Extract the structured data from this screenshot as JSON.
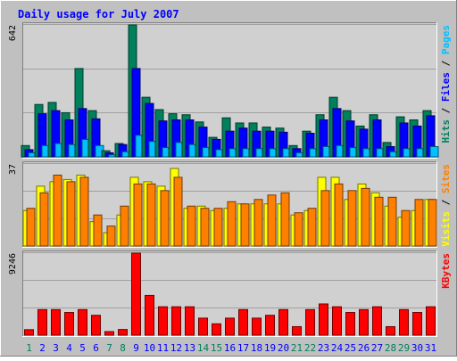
{
  "chart_data": [
    {
      "type": "bar",
      "title": "Daily usage for July 2007",
      "categories": [
        "1",
        "2",
        "3",
        "4",
        "5",
        "6",
        "7",
        "8",
        "9",
        "10",
        "11",
        "12",
        "13",
        "14",
        "15",
        "16",
        "17",
        "18",
        "19",
        "20",
        "21",
        "22",
        "23",
        "24",
        "25",
        "26",
        "27",
        "28",
        "29",
        "30",
        "31"
      ],
      "weekend_categories": [
        "1",
        "7",
        "8",
        "14",
        "15",
        "21",
        "22",
        "28",
        "29"
      ],
      "ylim": [
        0,
        642
      ],
      "y_max_label": "642",
      "legend": [
        {
          "text": "Pages",
          "color": "#00c0ff"
        },
        {
          "text": "Files",
          "color": "#0000ff"
        },
        {
          "text": "Hits",
          "color": "#00805c"
        }
      ],
      "legend_separator": " / ",
      "series": [
        {
          "name": "Hits",
          "color": "#00805c",
          "values": [
            55,
            255,
            265,
            215,
            430,
            225,
            30,
            65,
            642,
            290,
            230,
            210,
            205,
            170,
            95,
            190,
            165,
            165,
            145,
            140,
            55,
            125,
            205,
            290,
            225,
            150,
            205,
            70,
            195,
            180,
            225
          ]
        },
        {
          "name": "Files",
          "color": "#0000ff",
          "values": [
            35,
            210,
            225,
            180,
            235,
            185,
            20,
            60,
            430,
            260,
            175,
            180,
            180,
            145,
            85,
            125,
            140,
            125,
            125,
            120,
            40,
            115,
            180,
            235,
            175,
            135,
            180,
            50,
            165,
            150,
            200
          ]
        },
        {
          "name": "Pages",
          "color": "#00c0ff",
          "values": [
            20,
            55,
            65,
            60,
            85,
            55,
            10,
            25,
            105,
            75,
            45,
            70,
            60,
            45,
            35,
            40,
            40,
            40,
            40,
            40,
            20,
            40,
            50,
            55,
            45,
            40,
            40,
            25,
            40,
            40,
            50
          ]
        }
      ]
    },
    {
      "type": "bar",
      "ylim": [
        0,
        37
      ],
      "y_max_label": "37",
      "legend": [
        {
          "text": "Sites",
          "color": "#ff8000"
        },
        {
          "text": "Visits",
          "color": "#ffff00"
        }
      ],
      "legend_separator": " / ",
      "series": [
        {
          "name": "Visits",
          "color": "#ffff00",
          "values": [
            16,
            27,
            29,
            30,
            32,
            11,
            6,
            14,
            31,
            29,
            27,
            35,
            17,
            18,
            16,
            17,
            19,
            19,
            19,
            19,
            14,
            16,
            31,
            31,
            21,
            28,
            24,
            18,
            13,
            16,
            21
          ]
        },
        {
          "name": "Sites",
          "color": "#ff8000",
          "values": [
            17,
            24,
            32,
            29,
            31,
            14,
            9,
            18,
            28,
            28,
            25,
            31,
            18,
            17,
            17,
            20,
            19,
            21,
            23,
            24,
            15,
            17,
            25,
            28,
            25,
            26,
            22,
            22,
            16,
            21,
            21
          ]
        }
      ]
    },
    {
      "type": "bar",
      "ylim": [
        0,
        9246
      ],
      "y_max_label": "9246",
      "legend": [
        {
          "text": "KBytes",
          "color": "#ff0000"
        }
      ],
      "series": [
        {
          "name": "KBytes",
          "color": "#ff0000",
          "values": [
            620,
            2880,
            2880,
            2560,
            2880,
            2240,
            400,
            640,
            9246,
            4480,
            3200,
            3200,
            3200,
            1920,
            1280,
            1920,
            2880,
            1920,
            2240,
            2880,
            960,
            2880,
            3520,
            3200,
            2560,
            2880,
            3200,
            960,
            2880,
            2560,
            3200
          ]
        }
      ]
    }
  ],
  "colors": {
    "background": "#c0c0c0",
    "plot_background": "#d0d0d0",
    "grid": "#a0a0a0",
    "axis_label": "#000000",
    "title": "#0000ff",
    "weekday_label": "#0000ff",
    "weekend_label": "#00805c"
  }
}
